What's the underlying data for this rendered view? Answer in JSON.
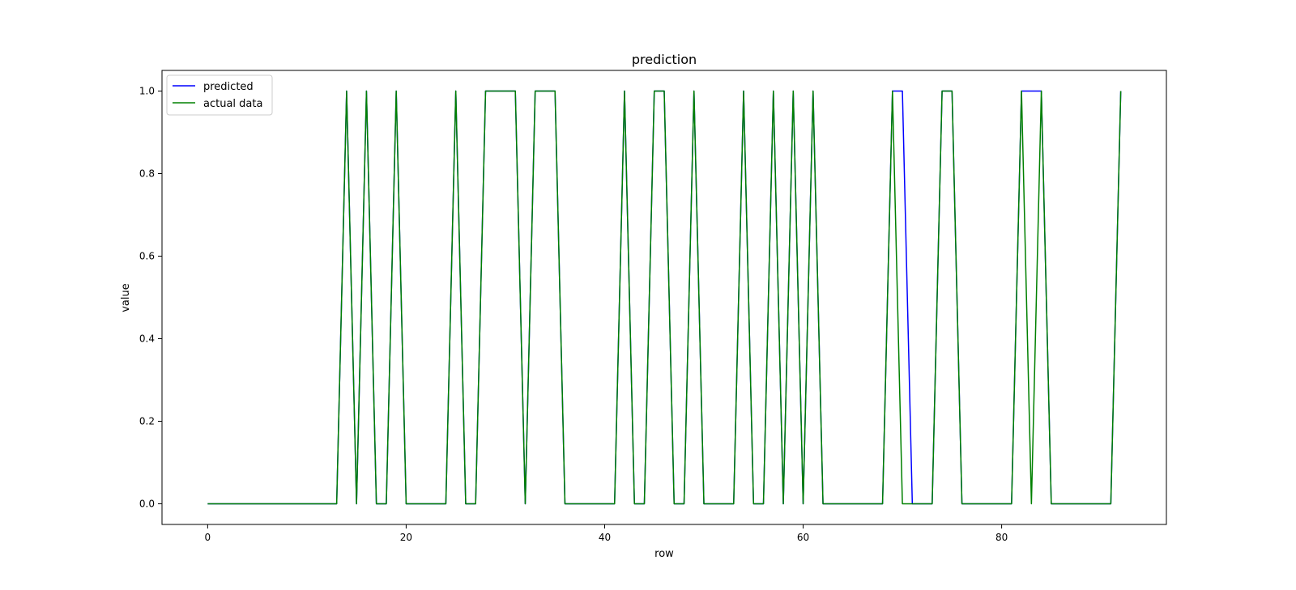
{
  "chart_data": {
    "type": "line",
    "title": "prediction",
    "xlabel": "row",
    "ylabel": "value",
    "xlim": [
      -4.6,
      96.6
    ],
    "ylim": [
      -0.05,
      1.05
    ],
    "x_ticks": [
      0,
      20,
      40,
      60,
      80
    ],
    "y_ticks": [
      0.0,
      0.2,
      0.4,
      0.6,
      0.8,
      1.0
    ],
    "x_tick_labels": [
      "0",
      "20",
      "40",
      "60",
      "80"
    ],
    "y_tick_labels": [
      "0.0",
      "0.2",
      "0.4",
      "0.6",
      "0.8",
      "1.0"
    ],
    "grid": false,
    "legend_position": "upper-left",
    "x": [
      0,
      1,
      2,
      3,
      4,
      5,
      6,
      7,
      8,
      9,
      10,
      11,
      12,
      13,
      14,
      15,
      16,
      17,
      18,
      19,
      20,
      21,
      22,
      23,
      24,
      25,
      26,
      27,
      28,
      29,
      30,
      31,
      32,
      33,
      34,
      35,
      36,
      37,
      38,
      39,
      40,
      41,
      42,
      43,
      44,
      45,
      46,
      47,
      48,
      49,
      50,
      51,
      52,
      53,
      54,
      55,
      56,
      57,
      58,
      59,
      60,
      61,
      62,
      63,
      64,
      65,
      66,
      67,
      68,
      69,
      70,
      71,
      72,
      73,
      74,
      75,
      76,
      77,
      78,
      79,
      80,
      81,
      82,
      83,
      84,
      85,
      86,
      87,
      88,
      89,
      90,
      91,
      92
    ],
    "series": [
      {
        "name": "predicted",
        "color": "#0000ff",
        "values": [
          0,
          0,
          0,
          0,
          0,
          0,
          0,
          0,
          0,
          0,
          0,
          0,
          0,
          0,
          1,
          0,
          1,
          0,
          0,
          1,
          0,
          0,
          0,
          0,
          0,
          1,
          0,
          0,
          1,
          1,
          1,
          1,
          0,
          1,
          1,
          1,
          0,
          0,
          0,
          0,
          0,
          0,
          1,
          0,
          0,
          1,
          1,
          0,
          0,
          1,
          0,
          0,
          0,
          0,
          1,
          0,
          0,
          1,
          0,
          1,
          0,
          1,
          0,
          0,
          0,
          0,
          0,
          0,
          0,
          1,
          1,
          0,
          0,
          0,
          1,
          1,
          0,
          0,
          0,
          0,
          0,
          0,
          1,
          1,
          1,
          0,
          0,
          0,
          0,
          0,
          0,
          0,
          1
        ]
      },
      {
        "name": "actual data",
        "color": "#008000",
        "values": [
          0,
          0,
          0,
          0,
          0,
          0,
          0,
          0,
          0,
          0,
          0,
          0,
          0,
          0,
          1,
          0,
          1,
          0,
          0,
          1,
          0,
          0,
          0,
          0,
          0,
          1,
          0,
          0,
          1,
          1,
          1,
          1,
          0,
          1,
          1,
          1,
          0,
          0,
          0,
          0,
          0,
          0,
          1,
          0,
          0,
          1,
          1,
          0,
          0,
          1,
          0,
          0,
          0,
          0,
          1,
          0,
          0,
          1,
          0,
          1,
          0,
          1,
          0,
          0,
          0,
          0,
          0,
          0,
          0,
          1,
          0,
          0,
          0,
          0,
          1,
          1,
          0,
          0,
          0,
          0,
          0,
          0,
          1,
          0,
          1,
          0,
          0,
          0,
          0,
          0,
          0,
          0,
          1
        ]
      }
    ]
  }
}
